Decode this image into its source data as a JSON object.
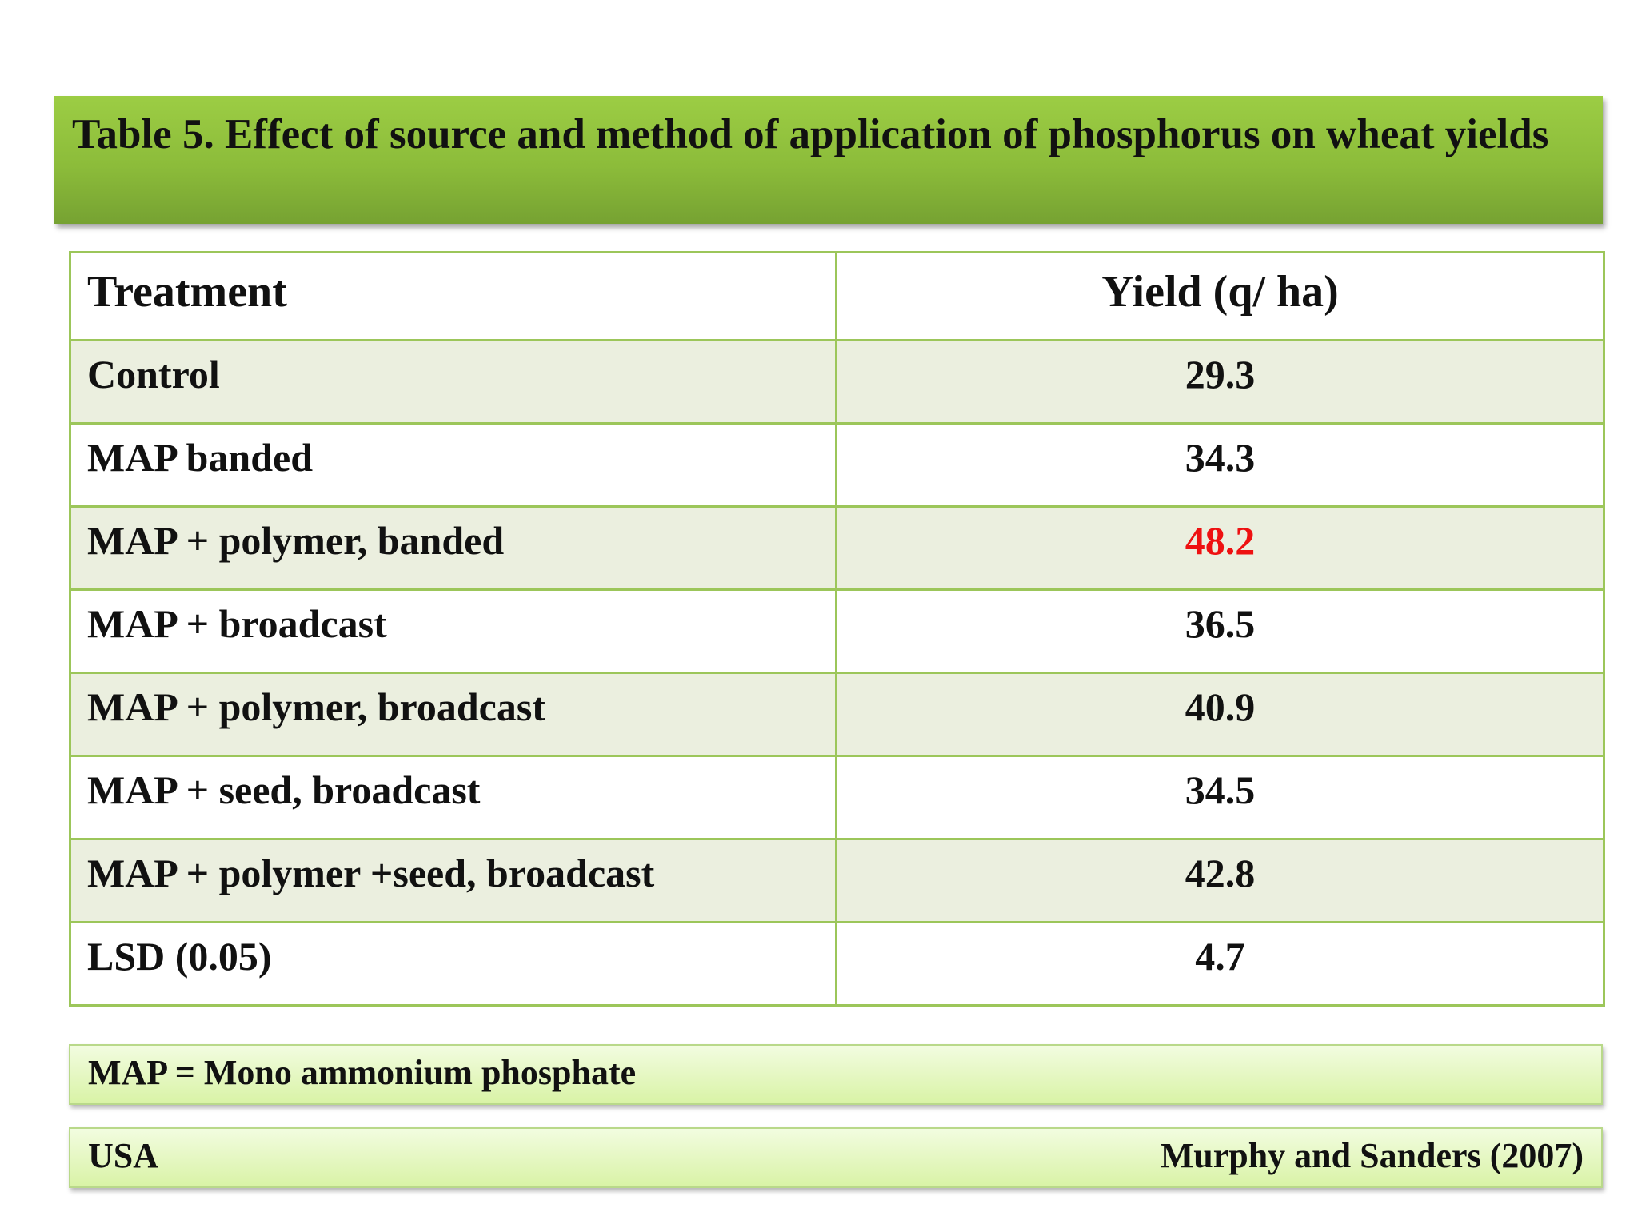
{
  "title": "Table 5. Effect of  source and method of application of phosphorus on wheat yields",
  "table": {
    "headers": {
      "treatment": "Treatment",
      "yield": "Yield (q/ ha)"
    },
    "rows": [
      {
        "treatment": "Control",
        "yield": "29.3"
      },
      {
        "treatment": "MAP banded",
        "yield": "34.3"
      },
      {
        "treatment": "MAP + polymer, banded",
        "yield": "48.2"
      },
      {
        "treatment": "MAP + broadcast",
        "yield": "36.5"
      },
      {
        "treatment": "MAP + polymer, broadcast",
        "yield": "40.9"
      },
      {
        "treatment": "MAP + seed, broadcast",
        "yield": "34.5"
      },
      {
        "treatment": "MAP + polymer +seed, broadcast",
        "yield": "42.8"
      },
      {
        "treatment": "LSD (0.05)",
        "yield": "4.7"
      }
    ],
    "highlight_color": "#ee1111"
  },
  "note": "MAP = Mono ammonium phosphate",
  "footer": {
    "location": "USA",
    "source": "Murphy and Sanders (2007)"
  },
  "colors": {
    "title_bar": "#8cbc3a",
    "grid": "#9cc65a",
    "row_shade": "#ebefdf",
    "note_bar": "#e4f7bd"
  }
}
